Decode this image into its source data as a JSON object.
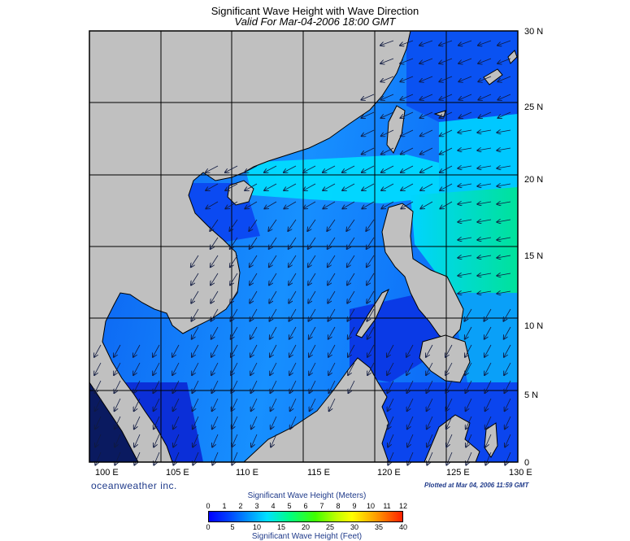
{
  "title": "Significant Wave Height with Wave Direction",
  "subtitle": "Valid For Mar-04-2006 18:00 GMT",
  "lon_labels": [
    "100 E",
    "105 E",
    "110 E",
    "115 E",
    "120 E",
    "125 E",
    "130 E"
  ],
  "lat_labels": [
    "30 N",
    "25 N",
    "20 N",
    "15 N",
    "10 N",
    "5 N",
    "0"
  ],
  "brand": "oceanweather inc.",
  "plotted": "Plotted at Mar 04, 2006 11:59 GMT",
  "colorbar": {
    "meters_title": "Significant Wave Height (Meters)",
    "meters_ticks": [
      "0",
      "1",
      "2",
      "3",
      "4",
      "5",
      "6",
      "7",
      "8",
      "9",
      "10",
      "11",
      "12"
    ],
    "feet_title": "Significant Wave Height (Feet)",
    "feet_ticks": [
      "0",
      "5",
      "10",
      "15",
      "20",
      "25",
      "30",
      "35",
      "40"
    ]
  },
  "colors": {
    "land": "#c0c0c0",
    "deep": "#0033ee",
    "mid": "#1a8cff",
    "high": "#00e8ff",
    "peak": "#00e69c"
  }
}
